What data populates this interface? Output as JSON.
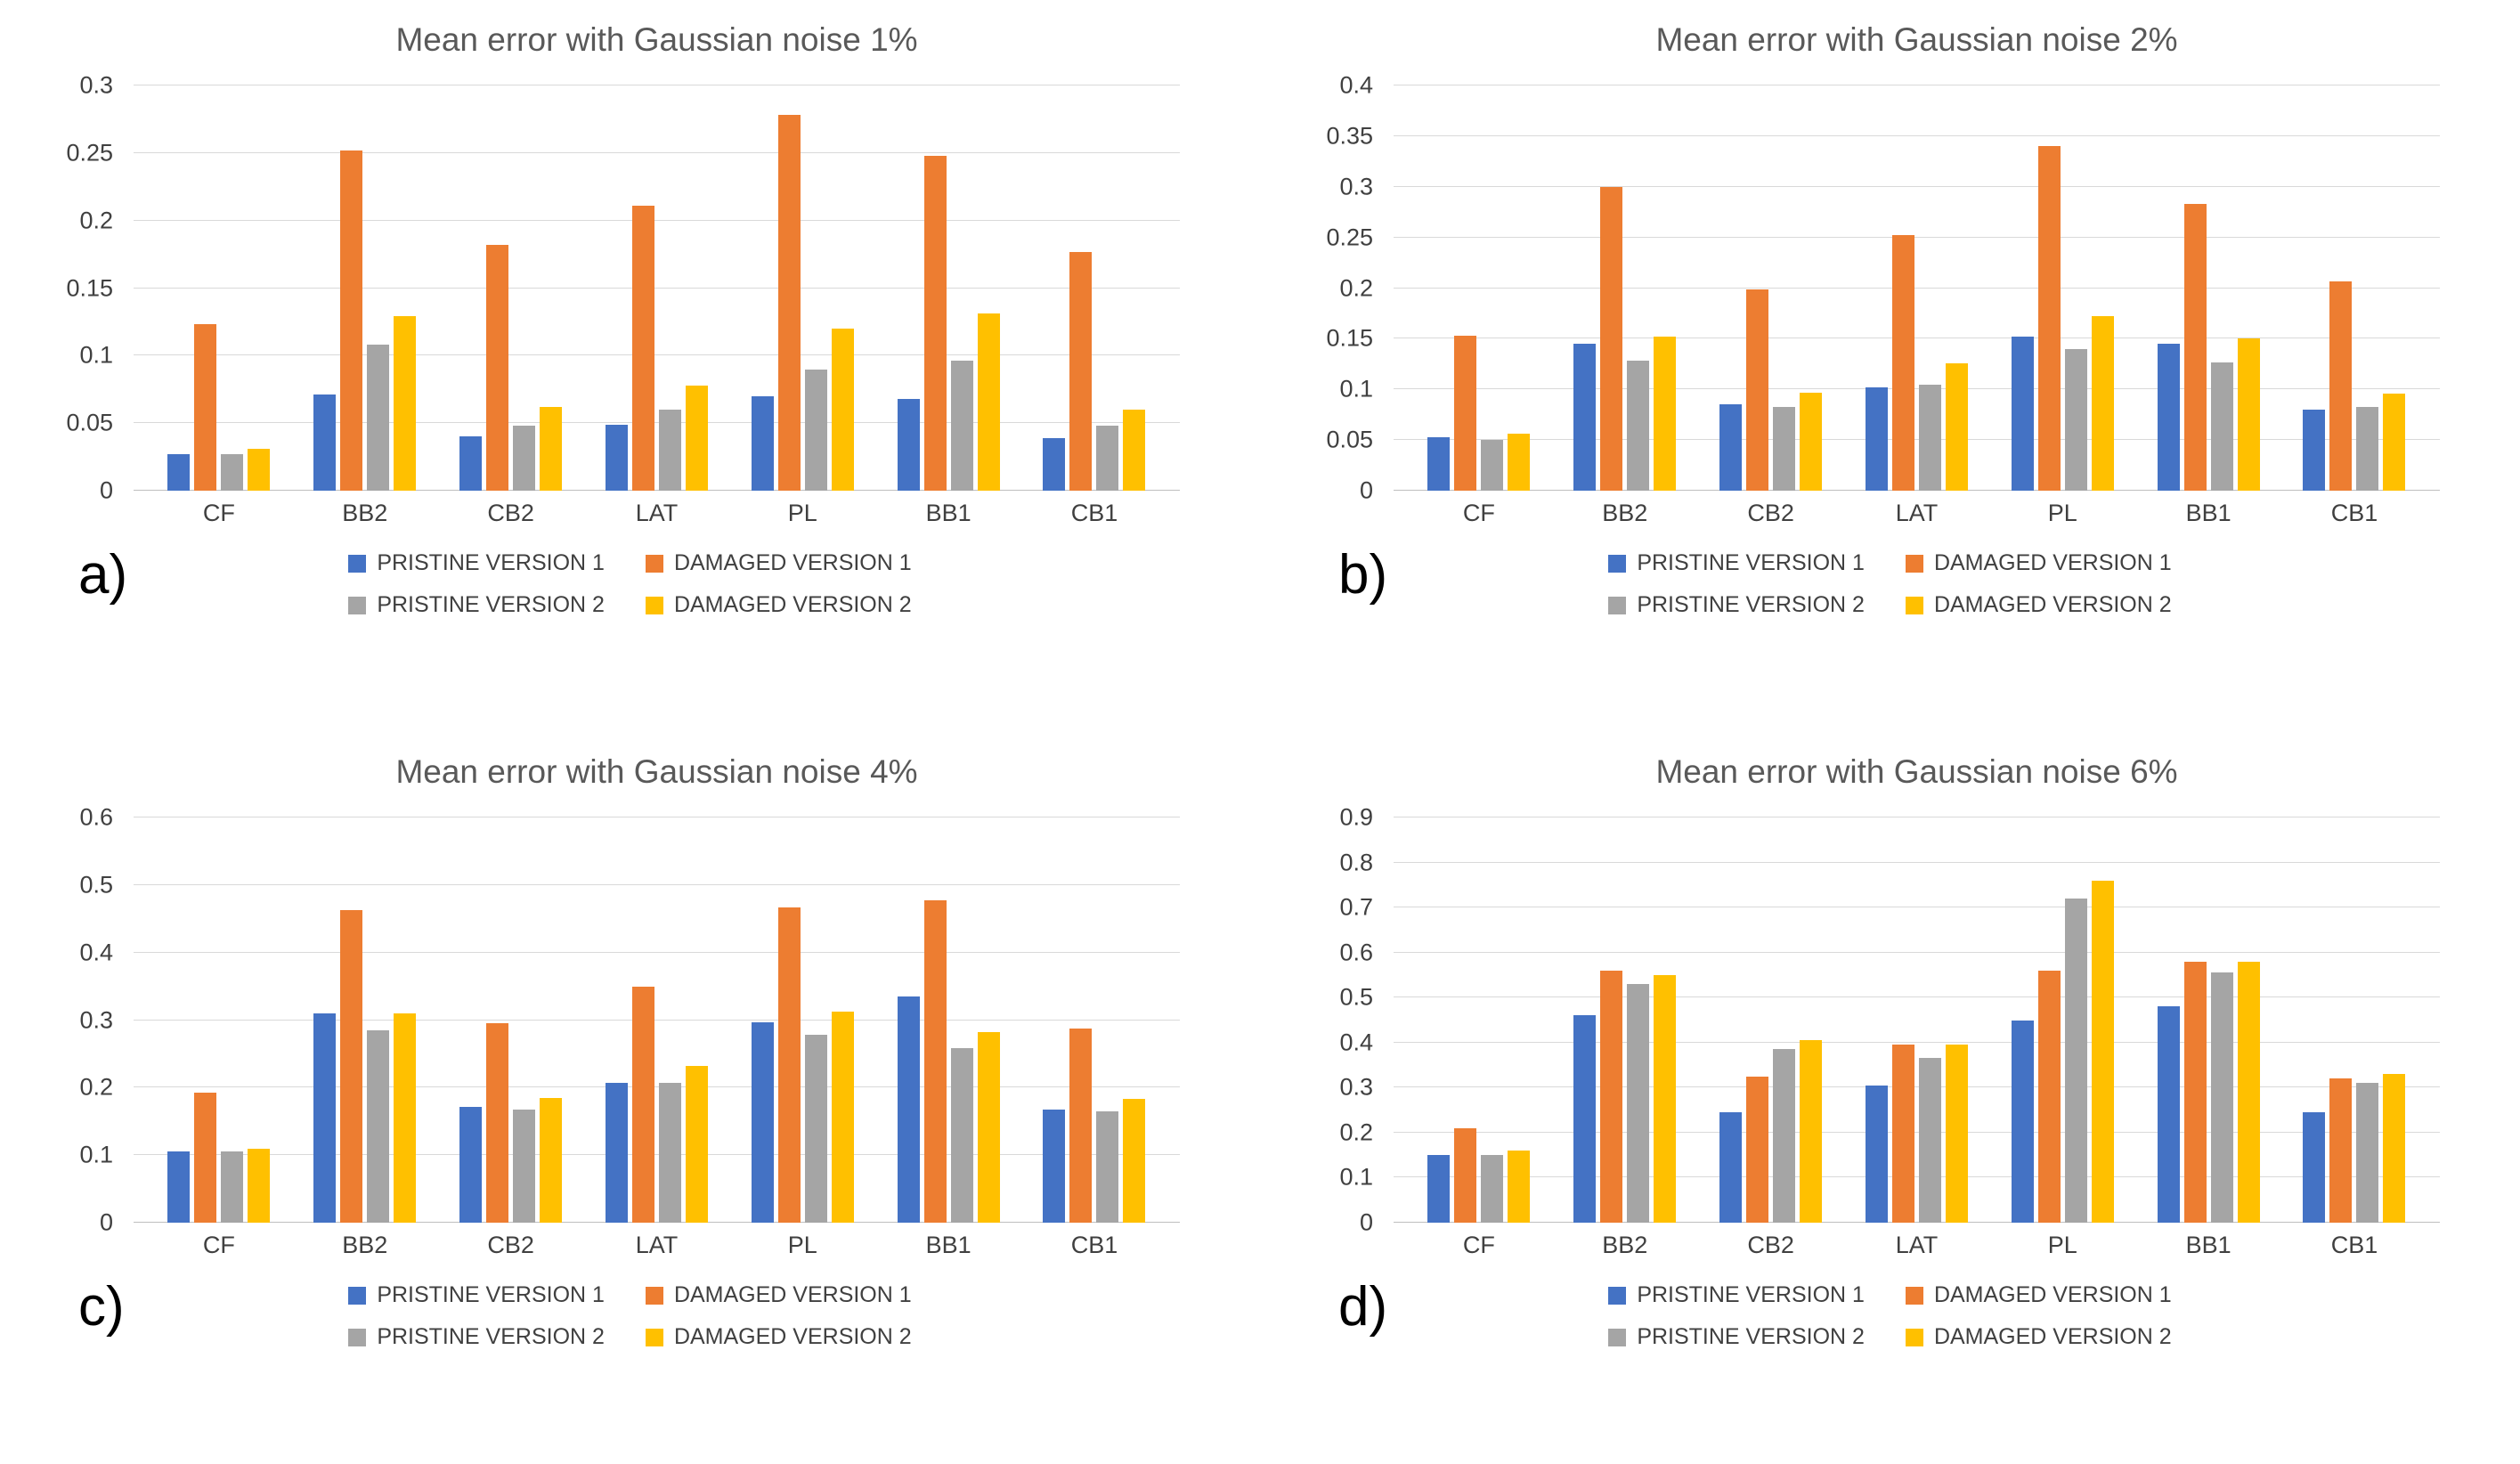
{
  "page": {
    "background": "#ffffff"
  },
  "series_colors": {
    "pristine_v1": "#4472C4",
    "damaged_v1": "#ED7D31",
    "pristine_v2": "#A5A5A5",
    "damaged_v2": "#FFC000"
  },
  "legend_labels": [
    "PRISTINE VERSION 1",
    "DAMAGED VERSION 1",
    "PRISTINE VERSION 2",
    "DAMAGED VERSION 2"
  ],
  "chart_data": [
    {
      "id": "a",
      "panel_label": "a)",
      "type": "bar",
      "title": "Mean error with Gaussian noise 1%",
      "categories": [
        "CF",
        "BB2",
        "CB2",
        "LAT",
        "PL",
        "BB1",
        "CB1"
      ],
      "ylim": [
        0,
        0.3
      ],
      "ytick_step": 0.05,
      "grid": true,
      "legend_position": "bottom",
      "series": [
        {
          "name": "PRISTINE VERSION 1",
          "color": "#4472C4",
          "values": [
            0.027,
            0.071,
            0.04,
            0.049,
            0.07,
            0.068,
            0.039
          ]
        },
        {
          "name": "DAMAGED VERSION 1",
          "color": "#ED7D31",
          "values": [
            0.123,
            0.252,
            0.182,
            0.211,
            0.278,
            0.248,
            0.177
          ]
        },
        {
          "name": "PRISTINE VERSION 2",
          "color": "#A5A5A5",
          "values": [
            0.027,
            0.108,
            0.048,
            0.06,
            0.09,
            0.096,
            0.048
          ]
        },
        {
          "name": "DAMAGED VERSION 2",
          "color": "#FFC000",
          "values": [
            0.031,
            0.129,
            0.062,
            0.078,
            0.12,
            0.131,
            0.06
          ]
        }
      ]
    },
    {
      "id": "b",
      "panel_label": "b)",
      "type": "bar",
      "title": "Mean error with Gaussian noise 2%",
      "categories": [
        "CF",
        "BB2",
        "CB2",
        "LAT",
        "PL",
        "BB1",
        "CB1"
      ],
      "ylim": [
        0,
        0.4
      ],
      "ytick_step": 0.05,
      "grid": true,
      "legend_position": "bottom",
      "series": [
        {
          "name": "PRISTINE VERSION 1",
          "color": "#4472C4",
          "values": [
            0.053,
            0.145,
            0.085,
            0.102,
            0.152,
            0.145,
            0.08
          ]
        },
        {
          "name": "DAMAGED VERSION 1",
          "color": "#ED7D31",
          "values": [
            0.153,
            0.3,
            0.199,
            0.252,
            0.34,
            0.283,
            0.207
          ]
        },
        {
          "name": "PRISTINE VERSION 2",
          "color": "#A5A5A5",
          "values": [
            0.05,
            0.128,
            0.083,
            0.105,
            0.14,
            0.127,
            0.083
          ]
        },
        {
          "name": "DAMAGED VERSION 2",
          "color": "#FFC000",
          "values": [
            0.056,
            0.152,
            0.097,
            0.126,
            0.172,
            0.15,
            0.096
          ]
        }
      ]
    },
    {
      "id": "c",
      "panel_label": "c)",
      "type": "bar",
      "title": "Mean error with Gaussian noise 4%",
      "categories": [
        "CF",
        "BB2",
        "CB2",
        "LAT",
        "PL",
        "BB1",
        "CB1"
      ],
      "ylim": [
        0,
        0.6
      ],
      "ytick_step": 0.1,
      "grid": true,
      "legend_position": "bottom",
      "series": [
        {
          "name": "PRISTINE VERSION 1",
          "color": "#4472C4",
          "values": [
            0.105,
            0.31,
            0.172,
            0.207,
            0.297,
            0.335,
            0.168
          ]
        },
        {
          "name": "DAMAGED VERSION 1",
          "color": "#ED7D31",
          "values": [
            0.192,
            0.463,
            0.295,
            0.35,
            0.467,
            0.478,
            0.288
          ]
        },
        {
          "name": "PRISTINE VERSION 2",
          "color": "#A5A5A5",
          "values": [
            0.105,
            0.285,
            0.168,
            0.207,
            0.278,
            0.258,
            0.165
          ]
        },
        {
          "name": "DAMAGED VERSION 2",
          "color": "#FFC000",
          "values": [
            0.11,
            0.31,
            0.185,
            0.232,
            0.313,
            0.282,
            0.183
          ]
        }
      ]
    },
    {
      "id": "d",
      "panel_label": "d)",
      "type": "bar",
      "title": "Mean error with Gaussian noise 6%",
      "categories": [
        "CF",
        "BB2",
        "CB2",
        "LAT",
        "PL",
        "BB1",
        "CB1"
      ],
      "ylim": [
        0,
        0.9
      ],
      "ytick_step": 0.1,
      "grid": true,
      "legend_position": "bottom",
      "series": [
        {
          "name": "PRISTINE VERSION 1",
          "color": "#4472C4",
          "values": [
            0.15,
            0.46,
            0.245,
            0.305,
            0.45,
            0.48,
            0.245
          ]
        },
        {
          "name": "DAMAGED VERSION 1",
          "color": "#ED7D31",
          "values": [
            0.21,
            0.56,
            0.325,
            0.395,
            0.56,
            0.58,
            0.32
          ]
        },
        {
          "name": "PRISTINE VERSION 2",
          "color": "#A5A5A5",
          "values": [
            0.15,
            0.53,
            0.385,
            0.365,
            0.72,
            0.555,
            0.31
          ]
        },
        {
          "name": "DAMAGED VERSION 2",
          "color": "#FFC000",
          "values": [
            0.16,
            0.55,
            0.405,
            0.395,
            0.76,
            0.58,
            0.33
          ]
        }
      ]
    }
  ]
}
